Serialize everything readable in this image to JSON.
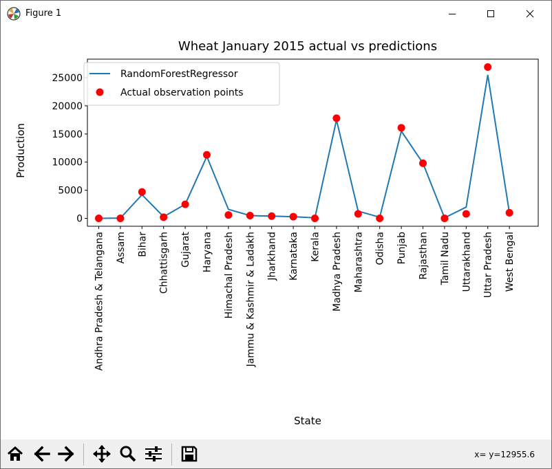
{
  "window": {
    "title": "Figure 1",
    "icons": {
      "app": "matplotlib-icon",
      "minimize": "minimize-icon",
      "maximize": "maximize-icon",
      "close": "close-icon"
    }
  },
  "toolbar": {
    "buttons": [
      {
        "name": "home-icon"
      },
      {
        "name": "back-arrow-icon"
      },
      {
        "name": "forward-arrow-icon"
      },
      {
        "name": "pan-icon"
      },
      {
        "name": "zoom-icon"
      },
      {
        "name": "configure-subplots-icon"
      },
      {
        "name": "save-icon"
      }
    ],
    "coordinates": "x= y=12955.6"
  },
  "chart_data": {
    "type": "line",
    "title": "Wheat January 2015 actual vs predictions",
    "xlabel": "State",
    "ylabel": "Production",
    "categories": [
      "Andhra Pradesh & Telangana",
      "Assam",
      "Bihar",
      "Chhattisgarh",
      "Gujarat",
      "Haryana",
      "Himachal Pradesh",
      "Jammu & Kashmir & Ladakh",
      "Jharkhand",
      "Karnataka",
      "Kerala",
      "Madhya Pradesh",
      "Maharashtra",
      "Odisha",
      "Punjab",
      "Rajasthan",
      "Tamil Nadu",
      "Uttarakhand",
      "Uttar Pradesh",
      "West Bengal"
    ],
    "series": [
      {
        "name": "RandomForestRegressor",
        "kind": "line",
        "color": "#1f77b4",
        "values": [
          0,
          50,
          4200,
          300,
          2500,
          11000,
          1600,
          500,
          400,
          300,
          100,
          17500,
          1300,
          200,
          15500,
          9800,
          100,
          2000,
          25500,
          1000
        ]
      },
      {
        "name": "Actual observation points",
        "kind": "scatter",
        "color": "#ff0000",
        "values": [
          0,
          0,
          4700,
          200,
          2500,
          11300,
          600,
          500,
          400,
          300,
          0,
          17800,
          800,
          0,
          16100,
          9800,
          0,
          800,
          26900,
          1000
        ]
      }
    ],
    "yticks": [
      0,
      5000,
      10000,
      15000,
      20000,
      25000
    ],
    "ylim": [
      -1400,
      28300
    ],
    "grid": false,
    "legend_position": "upper-left"
  }
}
